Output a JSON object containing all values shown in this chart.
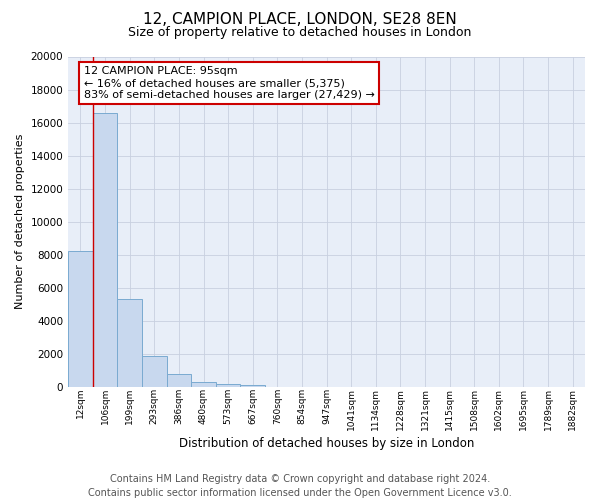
{
  "title": "12, CAMPION PLACE, LONDON, SE28 8EN",
  "subtitle": "Size of property relative to detached houses in London",
  "bar_labels": [
    "12sqm",
    "106sqm",
    "199sqm",
    "293sqm",
    "386sqm",
    "480sqm",
    "573sqm",
    "667sqm",
    "760sqm",
    "854sqm",
    "947sqm",
    "1041sqm",
    "1134sqm",
    "1228sqm",
    "1321sqm",
    "1415sqm",
    "1508sqm",
    "1602sqm",
    "1695sqm",
    "1789sqm",
    "1882sqm"
  ],
  "bar_values": [
    8200,
    16600,
    5300,
    1850,
    780,
    280,
    170,
    100,
    0,
    0,
    0,
    0,
    0,
    0,
    0,
    0,
    0,
    0,
    0,
    0,
    0
  ],
  "bar_color": "#c8d8ee",
  "bar_edgecolor": "#7aaad0",
  "ylim": [
    0,
    20000
  ],
  "yticks": [
    0,
    2000,
    4000,
    6000,
    8000,
    10000,
    12000,
    14000,
    16000,
    18000,
    20000
  ],
  "ylabel": "Number of detached properties",
  "xlabel": "Distribution of detached houses by size in London",
  "redline_x": 1,
  "annotation_title": "12 CAMPION PLACE: 95sqm",
  "annotation_line1": "← 16% of detached houses are smaller (5,375)",
  "annotation_line2": "83% of semi-detached houses are larger (27,429) →",
  "footer_line1": "Contains HM Land Registry data © Crown copyright and database right 2024.",
  "footer_line2": "Contains public sector information licensed under the Open Government Licence v3.0.",
  "background_color": "#ffffff",
  "plot_bg_color": "#e8eef8",
  "grid_color": "#c8d0e0",
  "title_fontsize": 11,
  "subtitle_fontsize": 9,
  "footer_fontsize": 7
}
